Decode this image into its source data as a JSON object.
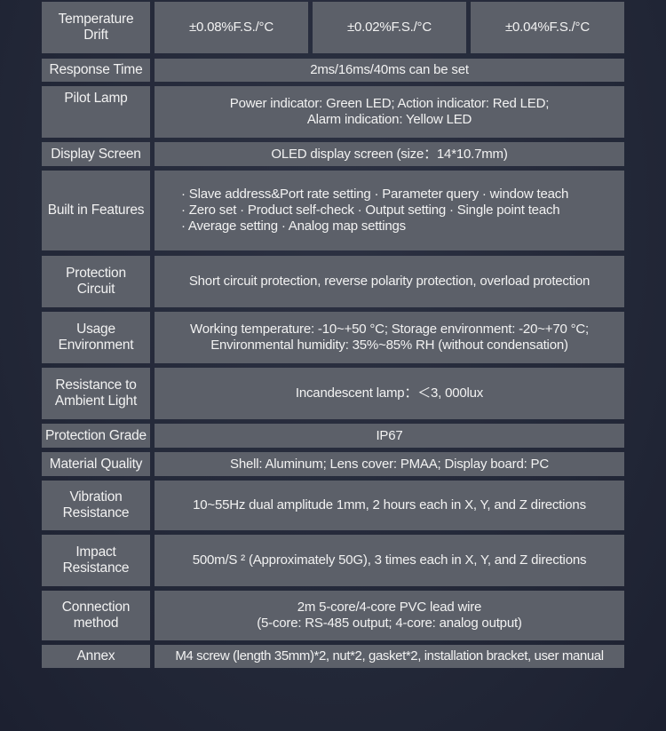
{
  "rows": [
    {
      "label": "Temperature\nDrift",
      "values": [
        "±0.08%F.S./°C",
        "±0.02%F.S./°C",
        "±0.04%F.S./°C"
      ]
    },
    {
      "label": "Response Time",
      "value": "2ms/16ms/40ms can be set"
    },
    {
      "label": "Pilot Lamp",
      "value": "Power indicator: Green LED; Action indicator: Red LED;\nAlarm indication: Yellow LED"
    },
    {
      "label": "Display Screen",
      "value": "OLED display screen (size：14*10.7mm)"
    },
    {
      "label": "Built in Features",
      "value": "· Slave address&Port rate setting · Parameter query · window teach\n· Zero set · Product self-check · Output setting · Single point teach\n· Average setting · Analog map settings"
    },
    {
      "label": "Protection\nCircuit",
      "value": "Short circuit protection, reverse polarity protection, overload protection"
    },
    {
      "label": "Usage\nEnvironment",
      "value": "Working temperature: -10~+50 °C; Storage environment: -20~+70 °C;\nEnvironmental humidity: 35%~85% RH (without condensation)"
    },
    {
      "label": "Resistance to\nAmbient Light",
      "value": "Incandescent lamp：＜3, 000lux"
    },
    {
      "label": "Protection Grade",
      "value": "IP67"
    },
    {
      "label": "Material Quality",
      "value": "Shell: Aluminum; Lens cover: PMAA; Display board: PC"
    },
    {
      "label": "Vibration\nResistance",
      "value": "10~55Hz dual amplitude 1mm, 2 hours each in X, Y, and Z directions"
    },
    {
      "label": "Impact\nResistance",
      "value": "500m/S ² (Approximately 50G), 3 times each in X, Y, and Z directions"
    },
    {
      "label": "Connection\nmethod",
      "value": "2m 5-core/4-core PVC lead wire\n(5-core: RS-485 output; 4-core: analog output)"
    },
    {
      "label": "Annex",
      "value": "M4 screw (length 35mm)*2, nut*2, gasket*2, installation bracket, user manual"
    }
  ]
}
